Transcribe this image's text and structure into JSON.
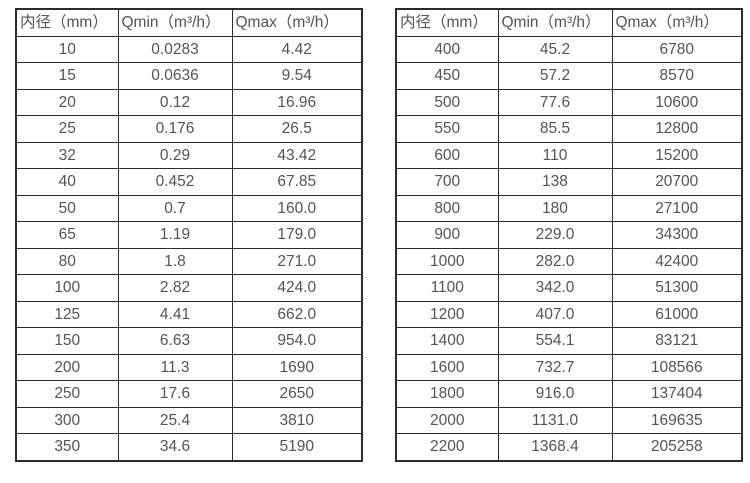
{
  "colors": {
    "background": "#ffffff",
    "text": "#545454",
    "border": "#2b2b2b"
  },
  "tables": [
    {
      "name": "flow-spec-table-small-diameters",
      "headers": [
        "内径（mm）",
        "Qmin（m³/h）",
        "Qmax（m³/h）"
      ],
      "rows": [
        [
          "10",
          "0.0283",
          "4.42"
        ],
        [
          "15",
          "0.0636",
          "9.54"
        ],
        [
          "20",
          "0.12",
          "16.96"
        ],
        [
          "25",
          "0.176",
          "26.5"
        ],
        [
          "32",
          "0.29",
          "43.42"
        ],
        [
          "40",
          "0.452",
          "67.85"
        ],
        [
          "50",
          "0.7",
          "160.0"
        ],
        [
          "65",
          "1.19",
          "179.0"
        ],
        [
          "80",
          "1.8",
          "271.0"
        ],
        [
          "100",
          "2.82",
          "424.0"
        ],
        [
          "125",
          "4.41",
          "662.0"
        ],
        [
          "150",
          "6.63",
          "954.0"
        ],
        [
          "200",
          "11.3",
          "1690"
        ],
        [
          "250",
          "17.6",
          "2650"
        ],
        [
          "300",
          "25.4",
          "3810"
        ],
        [
          "350",
          "34.6",
          "5190"
        ]
      ]
    },
    {
      "name": "flow-spec-table-large-diameters",
      "headers": [
        "内径（mm）",
        "Qmin（m³/h）",
        "Qmax（m³/h）"
      ],
      "rows": [
        [
          "400",
          "45.2",
          "6780"
        ],
        [
          "450",
          "57.2",
          "8570"
        ],
        [
          "500",
          "77.6",
          "10600"
        ],
        [
          "550",
          "85.5",
          "12800"
        ],
        [
          "600",
          "110",
          "15200"
        ],
        [
          "700",
          "138",
          "20700"
        ],
        [
          "800",
          "180",
          "27100"
        ],
        [
          "900",
          "229.0",
          "34300"
        ],
        [
          "1000",
          "282.0",
          "42400"
        ],
        [
          "1100",
          "342.0",
          "51300"
        ],
        [
          "1200",
          "407.0",
          "61000"
        ],
        [
          "1400",
          "554.1",
          "83121"
        ],
        [
          "1600",
          "732.7",
          "108566"
        ],
        [
          "1800",
          "916.0",
          "137404"
        ],
        [
          "2000",
          "1131.0",
          "169635"
        ],
        [
          "2200",
          "1368.4",
          "205258"
        ]
      ]
    }
  ]
}
